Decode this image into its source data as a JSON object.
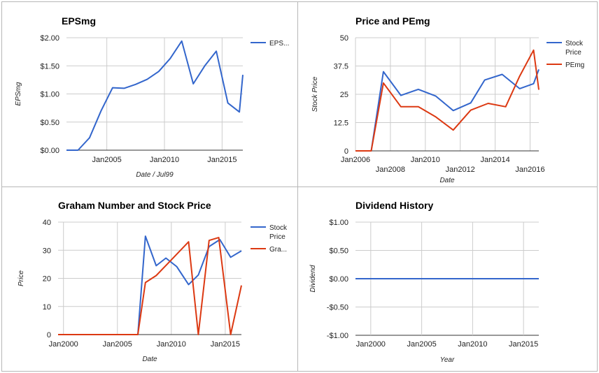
{
  "chart_data": [
    {
      "type": "line",
      "title": "EPSmg",
      "xlabel": "Date / Jul99",
      "ylabel": "EPSmg",
      "ylim": [
        0,
        2
      ],
      "xlim": [
        2001.5,
        2016.8
      ],
      "y_ticks": [
        "$0.00",
        "$0.50",
        "$1.00",
        "$1.50",
        "$2.00"
      ],
      "y_tick_values": [
        0,
        0.5,
        1.0,
        1.5,
        2.0
      ],
      "x_ticks": [
        {
          "label": "Jan2005",
          "value": 2005
        },
        {
          "label": "Jan2010",
          "value": 2010
        },
        {
          "label": "Jan2015",
          "value": 2015
        }
      ],
      "grid": true,
      "legend": "right",
      "series": [
        {
          "name": "EPS...",
          "color": "#3366cc",
          "x": [
            2001.5,
            2002.5,
            2003.5,
            2004.5,
            2005.5,
            2006.5,
            2007.5,
            2008.5,
            2009.5,
            2010.5,
            2011.5,
            2012.5,
            2013.5,
            2014.5,
            2015.5,
            2016.5,
            2016.8
          ],
          "y": [
            0.0,
            0.0,
            0.22,
            0.7,
            1.11,
            1.1,
            1.17,
            1.26,
            1.4,
            1.63,
            1.94,
            1.18,
            1.5,
            1.76,
            0.84,
            0.68,
            1.34
          ]
        }
      ]
    },
    {
      "type": "line",
      "title": "Price and PEmg",
      "xlabel": "Date",
      "ylabel": "Stock Price",
      "ylim": [
        0,
        50
      ],
      "xlim": [
        2006,
        2016.5
      ],
      "y_ticks": [
        "0",
        "12.5",
        "25",
        "37.5",
        "50"
      ],
      "y_tick_values": [
        0,
        12.5,
        25,
        37.5,
        50
      ],
      "x_ticks": [
        {
          "label": "Jan2006",
          "value": 2006,
          "row": 0
        },
        {
          "label": "Jan2008",
          "value": 2008,
          "row": 1
        },
        {
          "label": "Jan2010",
          "value": 2010,
          "row": 0
        },
        {
          "label": "Jan2012",
          "value": 2012,
          "row": 1
        },
        {
          "label": "Jan2014",
          "value": 2014,
          "row": 0
        },
        {
          "label": "Jan2016",
          "value": 2016,
          "row": 1
        }
      ],
      "grid": true,
      "legend": "right",
      "series": [
        {
          "name": "Stock Price",
          "color": "#3366cc",
          "x": [
            2006,
            2006.9,
            2007.6,
            2008.6,
            2009.6,
            2010.6,
            2011.6,
            2012.6,
            2013.4,
            2014.4,
            2015.4,
            2016.2,
            2016.5
          ],
          "y": [
            0,
            0,
            35,
            24.5,
            27.2,
            24.2,
            17.8,
            21.2,
            31.3,
            33.8,
            27.5,
            29.7,
            36
          ]
        },
        {
          "name": "PEmg",
          "color": "#dc3912",
          "x": [
            2006,
            2006.9,
            2007.6,
            2008.6,
            2009.6,
            2010.6,
            2011.6,
            2012.6,
            2013.6,
            2014.6,
            2015.4,
            2016.2,
            2016.5
          ],
          "y": [
            0,
            0,
            30,
            19.5,
            19.5,
            15,
            9.2,
            18,
            21,
            19.5,
            33,
            44.5,
            27
          ]
        }
      ]
    },
    {
      "type": "line",
      "title": "Graham Number and Stock Price",
      "xlabel": "Date",
      "ylabel": "Price",
      "ylim": [
        0,
        40
      ],
      "xlim": [
        1999.5,
        2016.5
      ],
      "y_ticks": [
        "0",
        "10",
        "20",
        "30",
        "40"
      ],
      "y_tick_values": [
        0,
        10,
        20,
        30,
        40
      ],
      "x_ticks": [
        {
          "label": "Jan2000",
          "value": 2000
        },
        {
          "label": "Jan2005",
          "value": 2005
        },
        {
          "label": "Jan2010",
          "value": 2010
        },
        {
          "label": "Jan2015",
          "value": 2015
        }
      ],
      "grid": true,
      "legend": "right",
      "series": [
        {
          "name": "Stock Price",
          "color": "#3366cc",
          "x": [
            1999.5,
            2006.9,
            2007.6,
            2008.6,
            2009.5,
            2010.5,
            2011.6,
            2012.5,
            2013.5,
            2014.5,
            2015.5,
            2016.5
          ],
          "y": [
            0,
            0,
            35,
            24.5,
            27.2,
            24.2,
            17.8,
            21.2,
            31.3,
            33.8,
            27.5,
            29.8
          ]
        },
        {
          "name": "Gra...",
          "color": "#dc3912",
          "x": [
            1999.5,
            2006.9,
            2007.6,
            2008.6,
            2009.6,
            2010.6,
            2011.6,
            2012.5,
            2013.5,
            2014.4,
            2015.5,
            2016.5
          ],
          "y": [
            0,
            0,
            18.5,
            21,
            25,
            29,
            33,
            0,
            33.5,
            34.5,
            0,
            17.5
          ]
        }
      ]
    },
    {
      "type": "line",
      "title": "Dividend History",
      "xlabel": "Year",
      "ylabel": "Dividend",
      "ylim": [
        -1,
        1
      ],
      "xlim": [
        1998.5,
        2016.5
      ],
      "y_ticks": [
        "-$1.00",
        "-$0.50",
        "$0.00",
        "$0.50",
        "$1.00"
      ],
      "y_tick_values": [
        -1,
        -0.5,
        0,
        0.5,
        1
      ],
      "x_ticks": [
        {
          "label": "Jan2000",
          "value": 2000
        },
        {
          "label": "Jan2005",
          "value": 2005
        },
        {
          "label": "Jan2010",
          "value": 2010
        },
        {
          "label": "Jan2015",
          "value": 2015
        }
      ],
      "grid": true,
      "legend": "none",
      "series": [
        {
          "name": "",
          "color": "#3366cc",
          "x": [
            1998.5,
            2016.5
          ],
          "y": [
            0,
            0
          ]
        }
      ]
    }
  ]
}
